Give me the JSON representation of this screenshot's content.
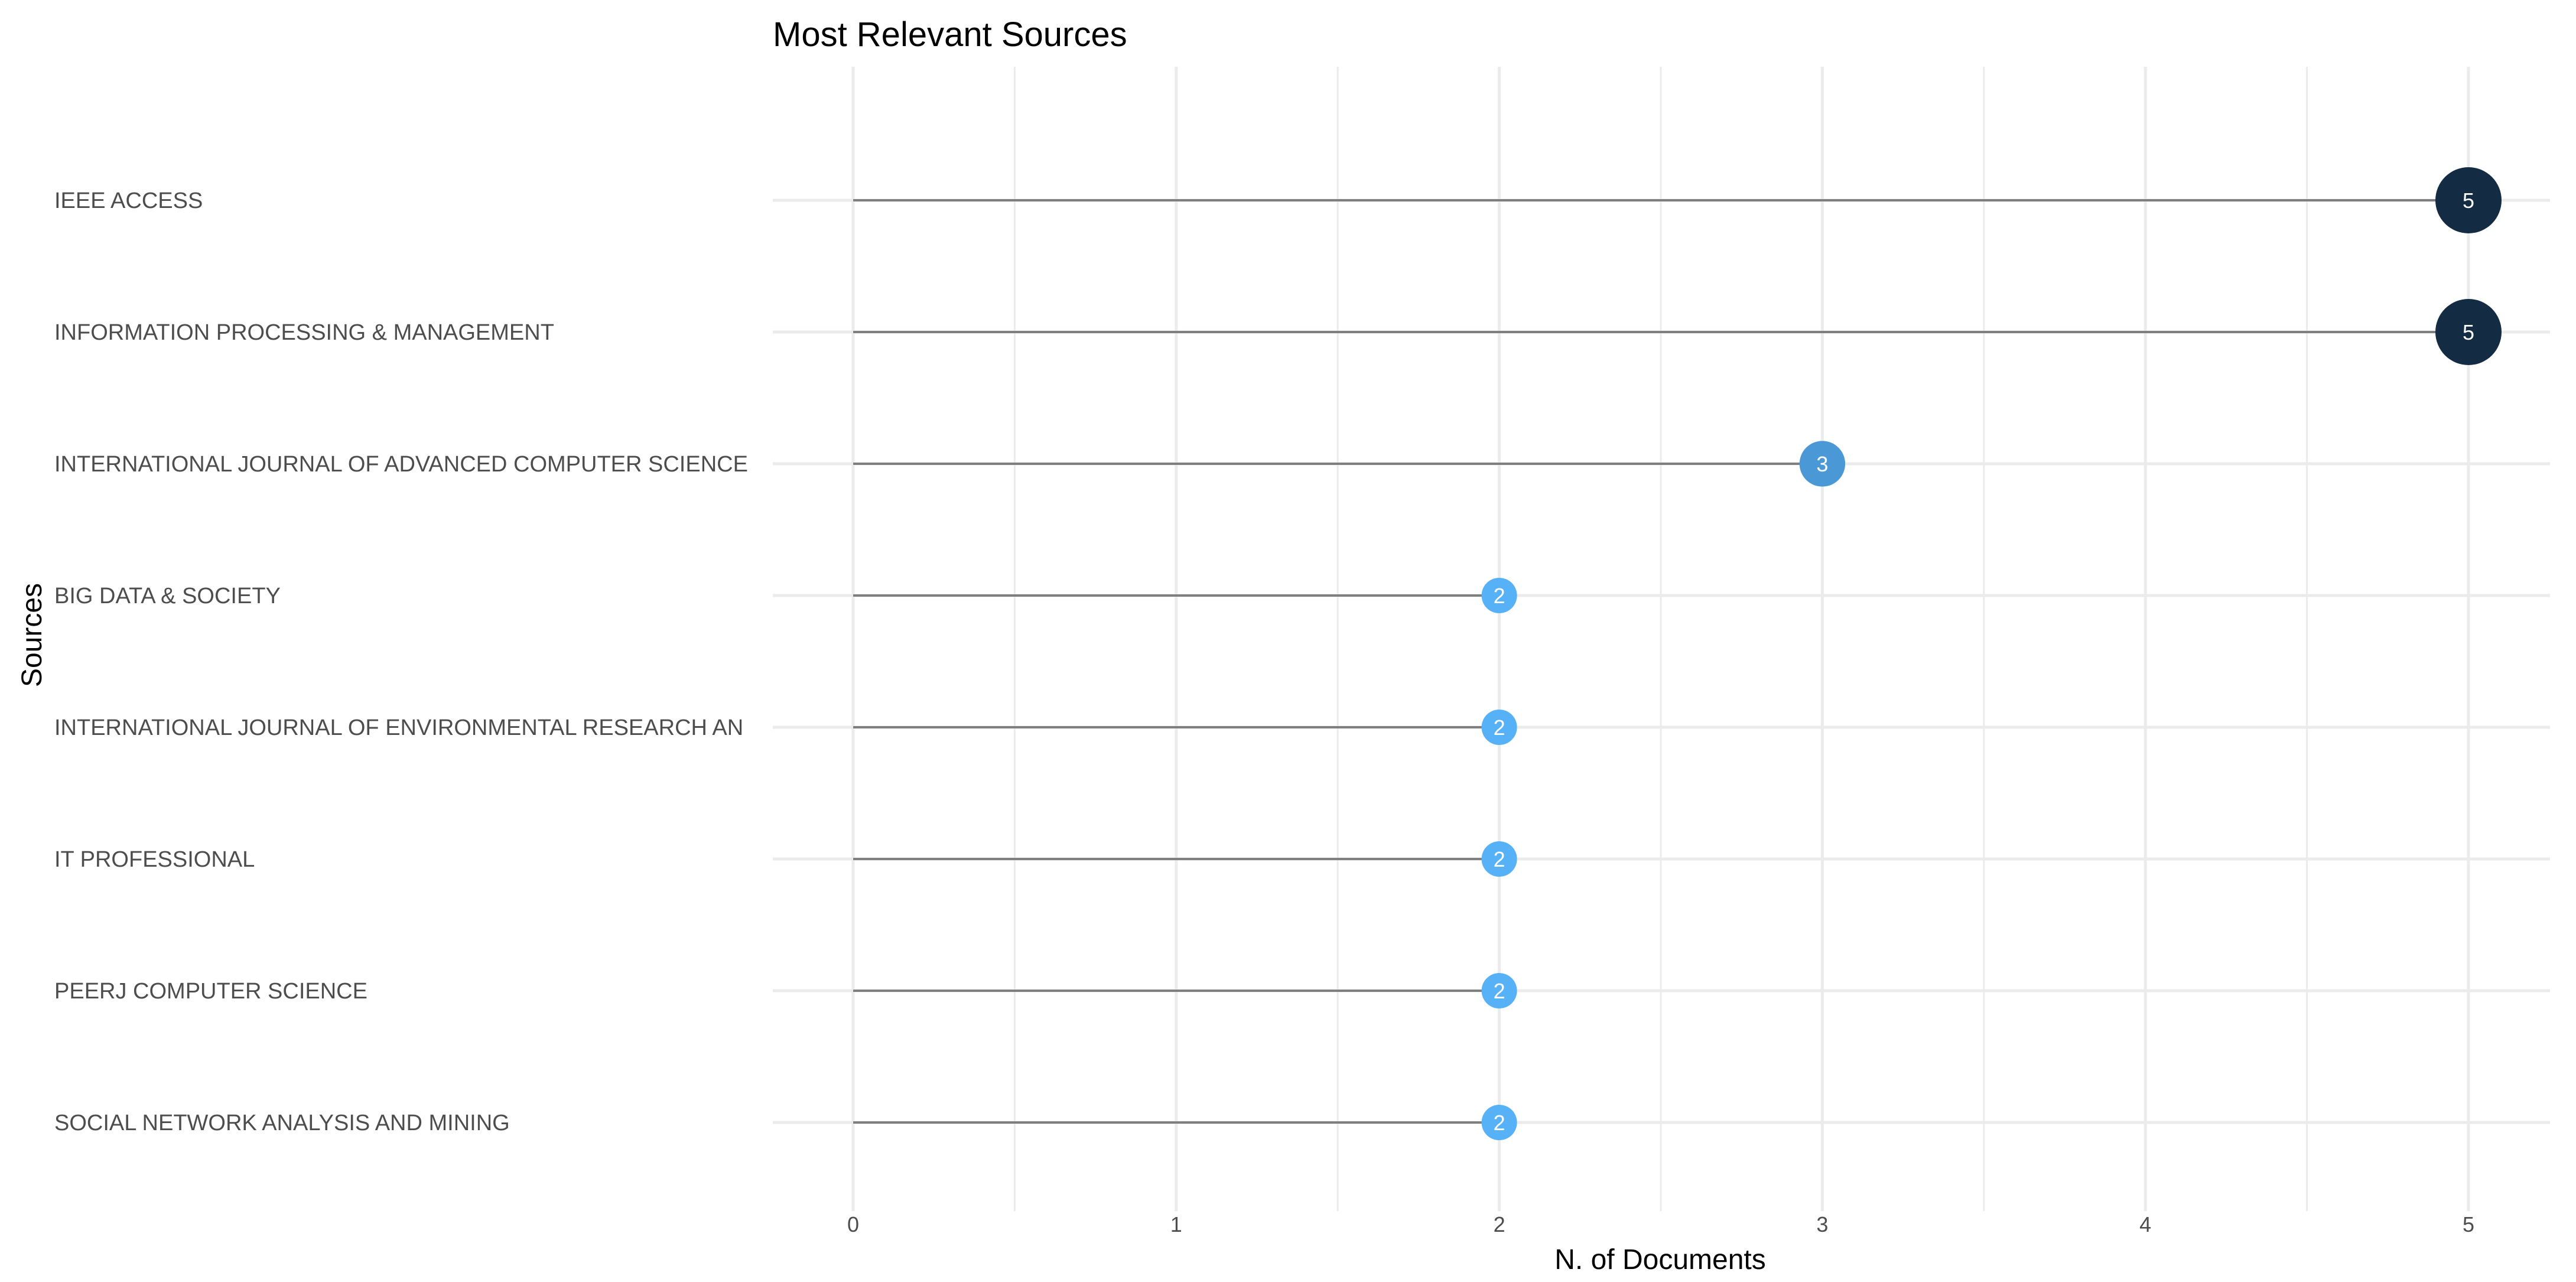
{
  "chart_data": {
    "type": "lollipop",
    "title": "Most Relevant Sources",
    "xlabel": "N. of Documents",
    "ylabel": "Sources",
    "xlim": [
      0,
      5
    ],
    "xticks": [
      "0",
      "1",
      "2",
      "3",
      "4",
      "5"
    ],
    "grid": true,
    "legend": "none",
    "categories": [
      "IEEE ACCESS",
      "INFORMATION PROCESSING & MANAGEMENT",
      "INTERNATIONAL JOURNAL OF ADVANCED COMPUTER SCIENCE",
      "BIG DATA & SOCIETY",
      "INTERNATIONAL JOURNAL OF ENVIRONMENTAL RESEARCH AN",
      "IT PROFESSIONAL",
      "PEERJ COMPUTER SCIENCE",
      "SOCIAL NETWORK ANALYSIS AND MINING"
    ],
    "values": [
      5,
      5,
      3,
      2,
      2,
      2,
      2,
      2
    ],
    "value_labels": [
      "5",
      "5",
      "3",
      "2",
      "2",
      "2",
      "2",
      "2"
    ],
    "colors": {
      "high": "#132b43",
      "mid": "#3a7ab5",
      "low": "#56b1f7",
      "stem": "#7f7f7f",
      "grid": "#ebebeb"
    }
  }
}
